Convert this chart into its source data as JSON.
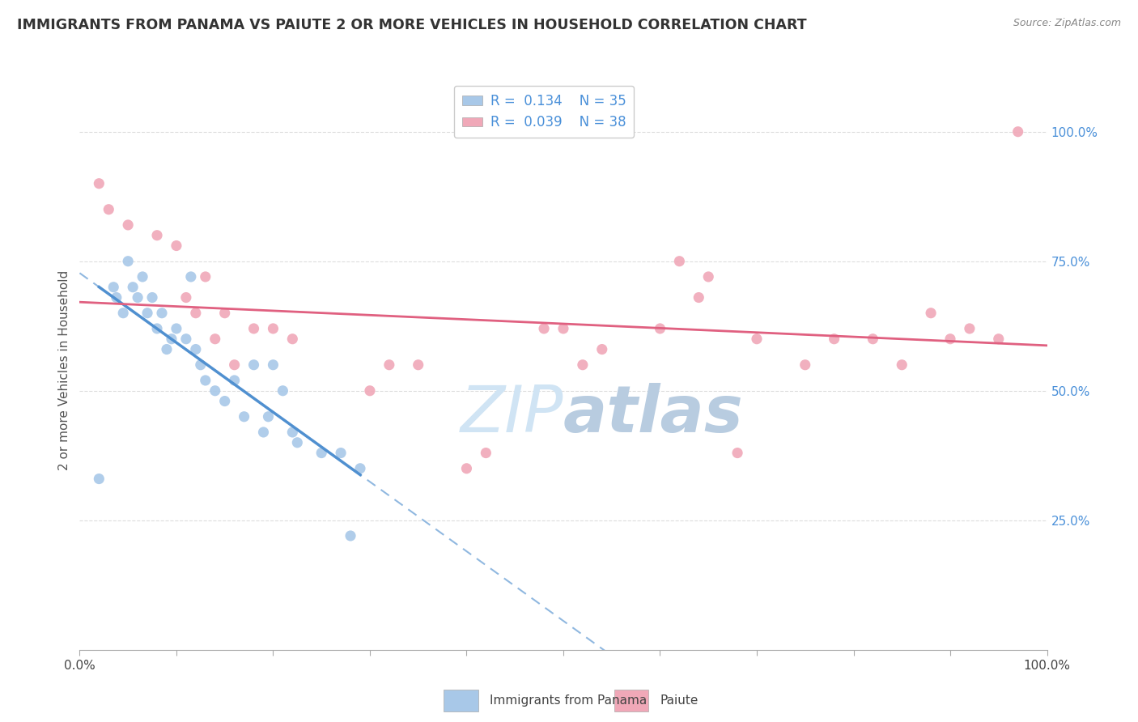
{
  "title": "IMMIGRANTS FROM PANAMA VS PAIUTE 2 OR MORE VEHICLES IN HOUSEHOLD CORRELATION CHART",
  "source": "Source: ZipAtlas.com",
  "ylabel": "2 or more Vehicles in Household",
  "yaxis_labels": [
    "25.0%",
    "50.0%",
    "75.0%",
    "100.0%"
  ],
  "yaxis_values": [
    25,
    50,
    75,
    100
  ],
  "legend_label1": "Immigrants from Panama",
  "legend_label2": "Paiute",
  "R1": 0.134,
  "N1": 35,
  "R2": 0.039,
  "N2": 38,
  "color1": "#a8c8e8",
  "color2": "#f0a8b8",
  "line1_color": "#5090d0",
  "line2_color": "#e06080",
  "line1_dash_color": "#90b8e0",
  "watermark_color": "#d0e4f4",
  "panama_x": [
    2.0,
    3.5,
    3.8,
    4.5,
    5.0,
    5.5,
    6.0,
    6.5,
    7.0,
    7.5,
    8.0,
    8.5,
    9.0,
    9.5,
    10.0,
    11.0,
    11.5,
    12.0,
    12.5,
    13.0,
    14.0,
    15.0,
    16.0,
    17.0,
    18.0,
    19.0,
    19.5,
    20.0,
    21.0,
    22.0,
    22.5,
    25.0,
    27.0,
    28.0,
    29.0
  ],
  "panama_y": [
    33.0,
    70.0,
    68.0,
    65.0,
    75.0,
    70.0,
    68.0,
    72.0,
    65.0,
    68.0,
    62.0,
    65.0,
    58.0,
    60.0,
    62.0,
    60.0,
    72.0,
    58.0,
    55.0,
    52.0,
    50.0,
    48.0,
    52.0,
    45.0,
    55.0,
    42.0,
    45.0,
    55.0,
    50.0,
    42.0,
    40.0,
    38.0,
    38.0,
    22.0,
    35.0
  ],
  "paiute_x": [
    2.0,
    3.0,
    5.0,
    8.0,
    10.0,
    11.0,
    12.0,
    13.0,
    14.0,
    15.0,
    16.0,
    18.0,
    20.0,
    22.0,
    30.0,
    32.0,
    35.0,
    40.0,
    42.0,
    48.0,
    50.0,
    52.0,
    54.0,
    60.0,
    62.0,
    64.0,
    65.0,
    68.0,
    70.0,
    75.0,
    78.0,
    82.0,
    85.0,
    88.0,
    90.0,
    92.0,
    95.0,
    97.0
  ],
  "paiute_y": [
    90.0,
    85.0,
    82.0,
    80.0,
    78.0,
    68.0,
    65.0,
    72.0,
    60.0,
    65.0,
    55.0,
    62.0,
    62.0,
    60.0,
    50.0,
    55.0,
    55.0,
    35.0,
    38.0,
    62.0,
    62.0,
    55.0,
    58.0,
    62.0,
    75.0,
    68.0,
    72.0,
    38.0,
    60.0,
    55.0,
    60.0,
    60.0,
    55.0,
    65.0,
    60.0,
    62.0,
    60.0,
    100.0
  ],
  "xlim": [
    0,
    100
  ],
  "ylim": [
    0,
    108
  ],
  "xtick_positions": [
    0,
    10,
    20,
    30,
    40,
    50,
    60,
    70,
    80,
    90,
    100
  ]
}
